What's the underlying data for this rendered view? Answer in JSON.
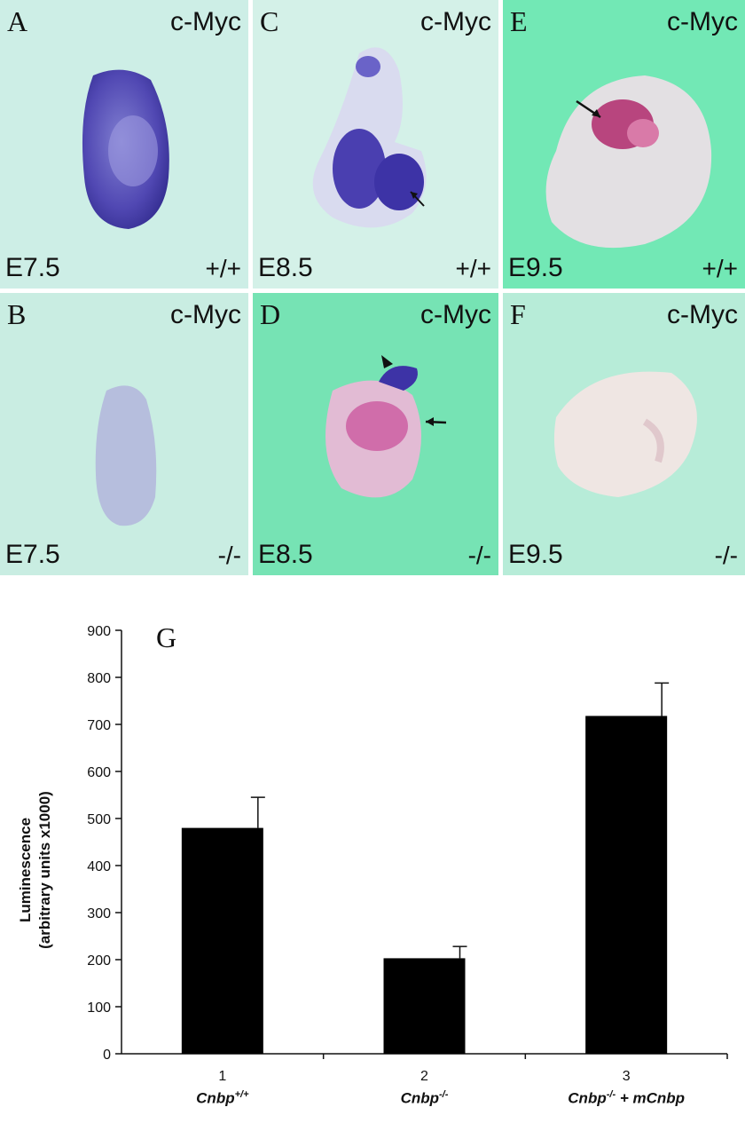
{
  "panels": {
    "A": {
      "letter": "A",
      "marker": "c-Myc",
      "stage": "E7.5",
      "genotype": "+/+"
    },
    "B": {
      "letter": "B",
      "marker": "c-Myc",
      "stage": "E7.5",
      "genotype": "-/-"
    },
    "C": {
      "letter": "C",
      "marker": "c-Myc",
      "stage": "E8.5",
      "genotype": "+/+"
    },
    "D": {
      "letter": "D",
      "marker": "c-Myc",
      "stage": "E8.5",
      "genotype": "-/-"
    },
    "E": {
      "letter": "E",
      "marker": "c-Myc",
      "stage": "E9.5",
      "genotype": "+/+"
    },
    "F": {
      "letter": "F",
      "marker": "c-Myc",
      "stage": "E9.5",
      "genotype": "-/-"
    }
  },
  "chart_data": {
    "type": "bar",
    "panel_letter": "G",
    "categories": [
      "1",
      "2",
      "3"
    ],
    "category_labels": [
      {
        "base": "Cnbp",
        "sup": "+/+",
        "suffix": ""
      },
      {
        "base": "Cnbp",
        "sup": "-/-",
        "suffix": ""
      },
      {
        "base": "Cnbp",
        "sup": "-/-",
        "suffix": " + mCnbp"
      }
    ],
    "values": [
      480,
      203,
      718
    ],
    "errors": [
      65,
      25,
      70
    ],
    "ylabel_line1": "Luminescence",
    "ylabel_line2": "(arbitrary units x1000)",
    "ylim": [
      0,
      900
    ],
    "yticks": [
      0,
      100,
      200,
      300,
      400,
      500,
      600,
      700,
      800,
      900
    ],
    "bar_color": "#000000",
    "grid": false
  }
}
